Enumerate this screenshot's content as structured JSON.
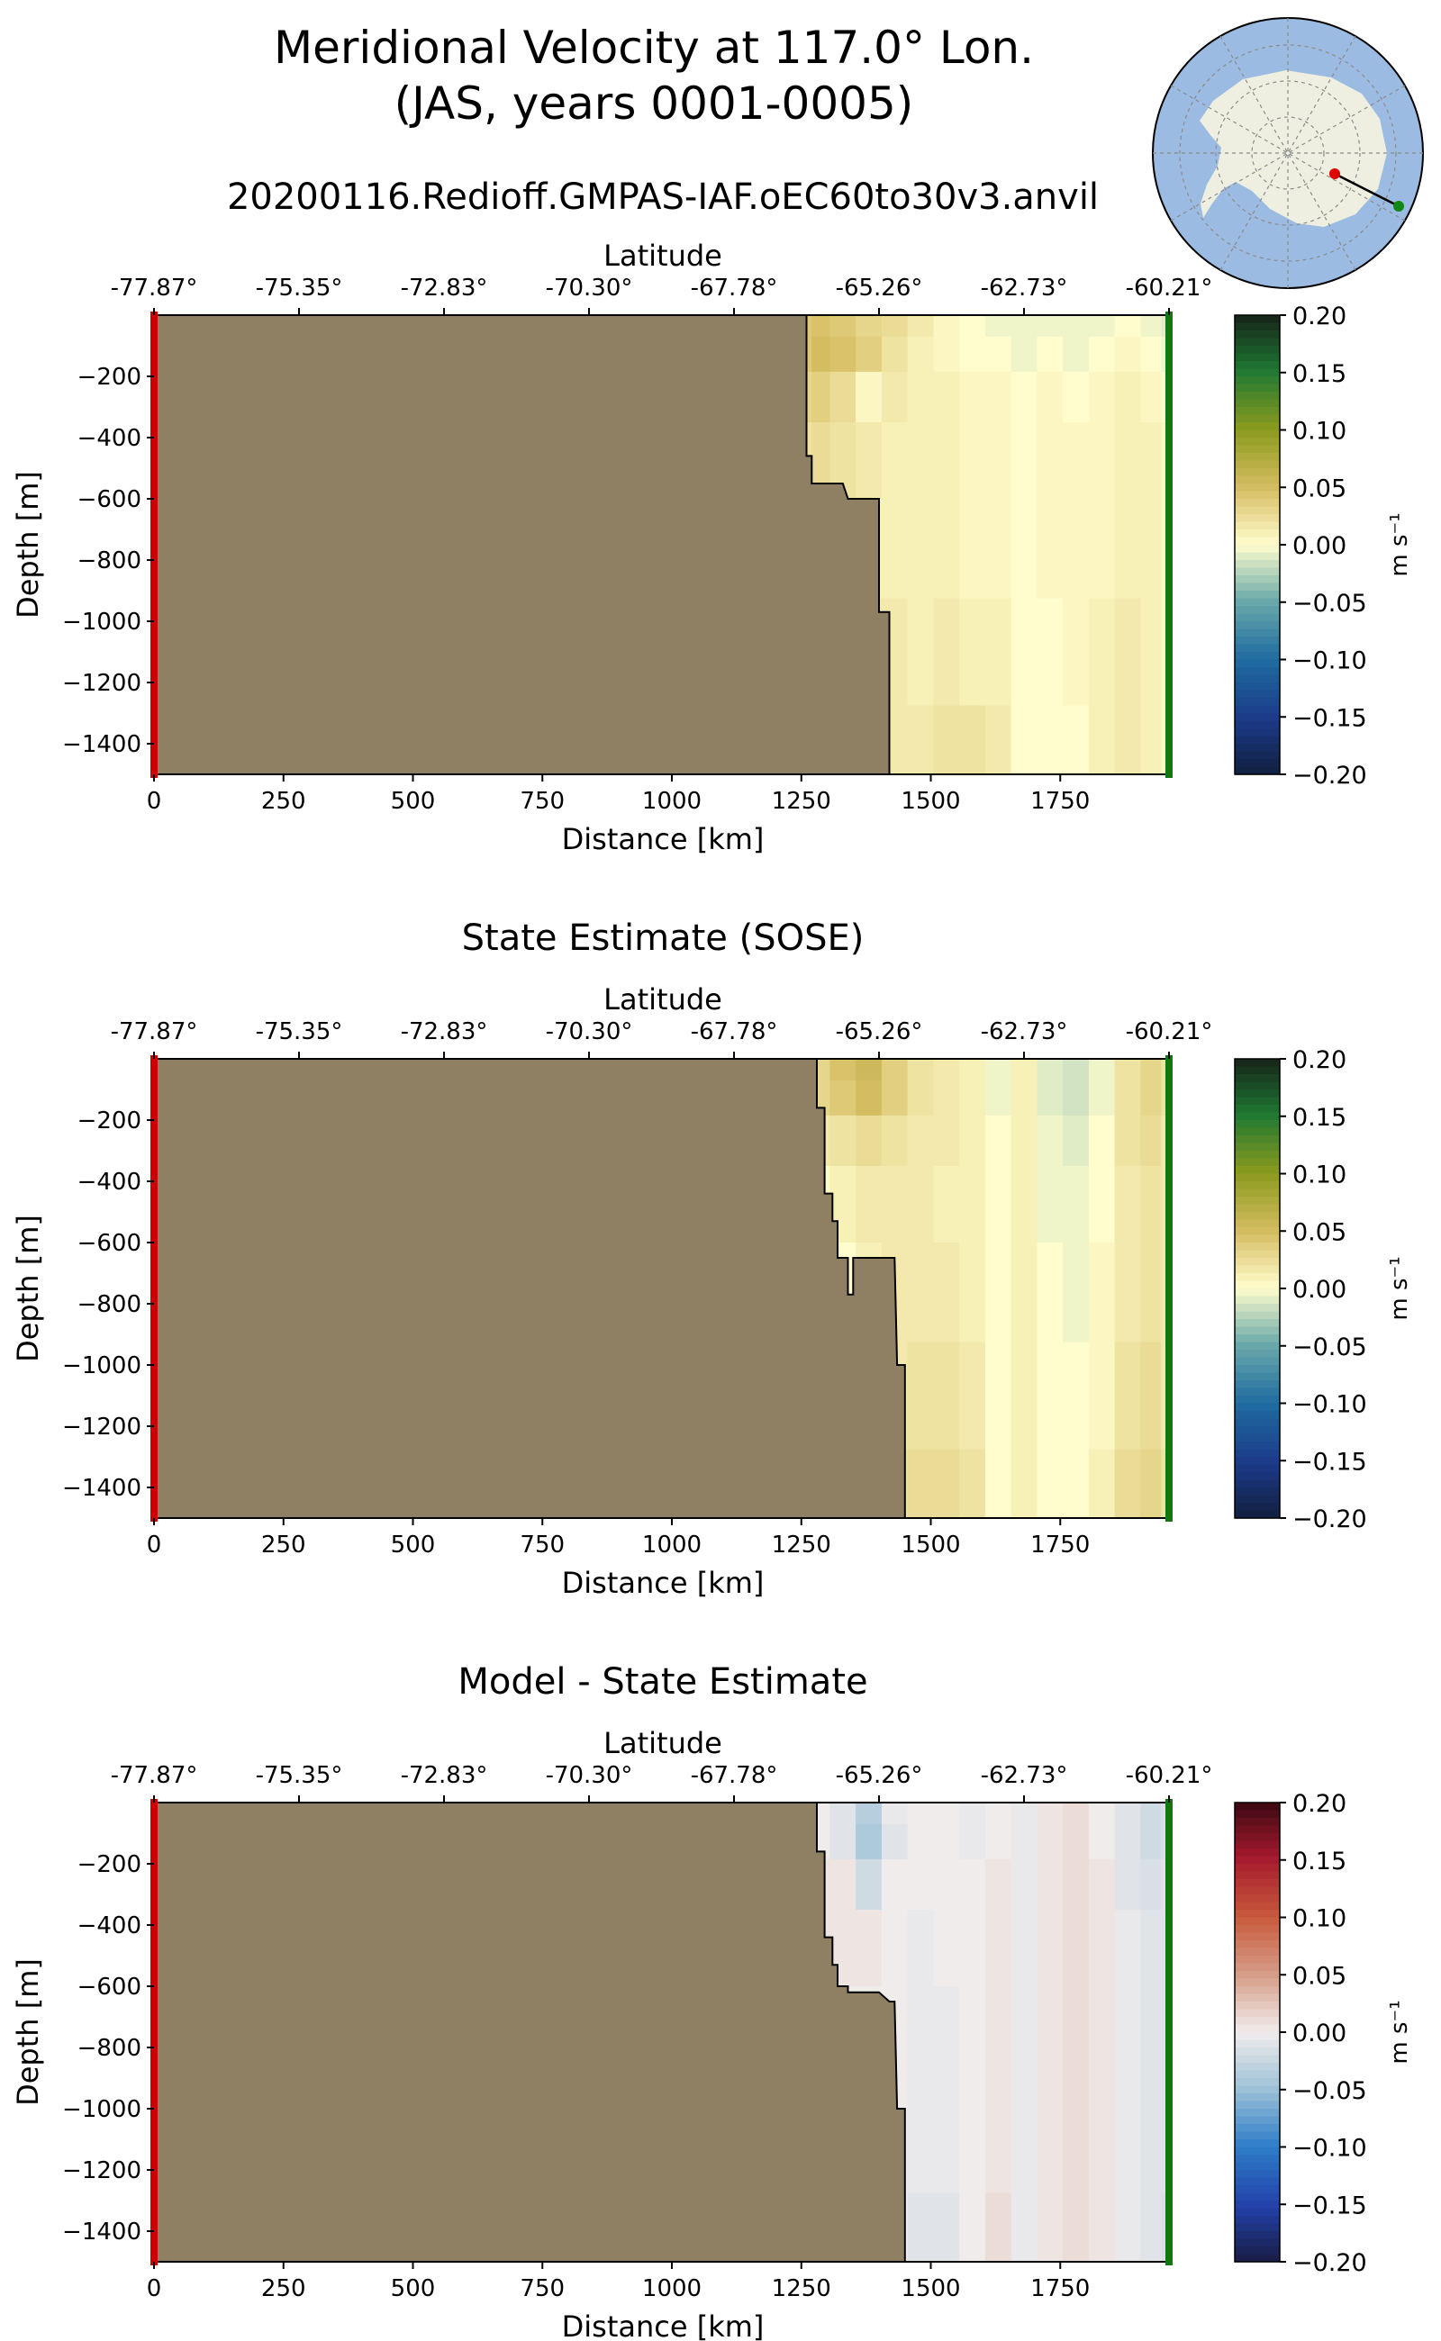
{
  "title_line1": "Meridional Velocity at 117.0° Lon.",
  "title_line2": "(JAS, years 0001-0005)",
  "colors": {
    "land": "#8f8064",
    "section_start": "#cc0000",
    "section_end": "#117711",
    "ocean_inset": "#9cbbe2",
    "antarctica_inset": "#eeefe0"
  },
  "chart_data": [
    {
      "type": "heatmap",
      "title": "20200116.Redioff.GMPAS-IAF.oEC60to30v3.anvil",
      "xlabel": "Distance [km]",
      "x2label": "Latitude",
      "ylabel": "Depth [m]",
      "xlim": [
        0,
        1960
      ],
      "ylim": [
        -1500,
        0
      ],
      "xticks": [
        0,
        250,
        500,
        750,
        1000,
        1250,
        1500,
        1750
      ],
      "yticks": [
        -200,
        -400,
        -600,
        -800,
        -1000,
        -1200,
        -1400
      ],
      "lat_ticks": [
        "-77.87°",
        "-75.35°",
        "-72.83°",
        "-70.30°",
        "-67.78°",
        "-65.26°",
        "-62.73°",
        "-60.21°"
      ],
      "lat_tick_positions_km": [
        0,
        280,
        560,
        840,
        1120,
        1400,
        1680,
        1960
      ],
      "colormap": "delta",
      "colorbar": {
        "label": "m s⁻¹",
        "ticks": [
          "0.20",
          "0.15",
          "0.10",
          "0.05",
          "0.00",
          "−0.05",
          "−0.10",
          "−0.15",
          "−0.20"
        ],
        "vmin": -0.2,
        "vmax": 0.2
      },
      "bathymetry": [
        [
          1260,
          0
        ],
        [
          1260,
          -460
        ],
        [
          1270,
          -460
        ],
        [
          1270,
          -550
        ],
        [
          1330,
          -550
        ],
        [
          1340,
          -600
        ],
        [
          1400,
          -600
        ],
        [
          1400,
          -970
        ],
        [
          1420,
          -970
        ],
        [
          1420,
          -1500
        ]
      ],
      "field_columns_km": [
        1260,
        1280,
        1330,
        1380,
        1430,
        1480,
        1530,
        1580,
        1630,
        1680,
        1730,
        1780,
        1830,
        1880,
        1930,
        1960
      ],
      "field_rows_m": [
        -20,
        -120,
        -250,
        -450,
        -750,
        -1100,
        -1450
      ],
      "field_values": [
        [
          0.04,
          0.045,
          0.04,
          0.03,
          0.025,
          0.015,
          0.005,
          0.0,
          -0.005,
          -0.005,
          -0.005,
          -0.005,
          -0.005,
          0.0,
          -0.005,
          -0.01
        ],
        [
          0.04,
          0.05,
          0.045,
          0.035,
          0.02,
          0.01,
          0.005,
          0.0,
          0.0,
          -0.005,
          0.0,
          -0.005,
          0.0,
          0.005,
          0.0,
          -0.005
        ],
        [
          0.03,
          0.035,
          0.025,
          0.005,
          0.015,
          0.01,
          0.01,
          0.005,
          0.005,
          0.0,
          0.005,
          0.0,
          0.005,
          0.01,
          0.005,
          0.0
        ],
        [
          0.02,
          0.025,
          0.02,
          0.015,
          0.01,
          0.01,
          0.01,
          0.005,
          0.005,
          0.0,
          0.005,
          0.005,
          0.005,
          0.01,
          0.01,
          0.005
        ],
        [
          0.015,
          0.015,
          0.015,
          0.01,
          0.01,
          0.01,
          0.01,
          0.005,
          0.005,
          0.0,
          0.005,
          0.005,
          0.005,
          0.01,
          0.01,
          0.005
        ],
        [
          0.015,
          0.015,
          0.015,
          0.015,
          0.015,
          0.01,
          0.015,
          0.01,
          0.01,
          0.0,
          0.0,
          0.005,
          0.01,
          0.015,
          0.01,
          0.005
        ],
        [
          0.015,
          0.015,
          0.015,
          0.015,
          0.015,
          0.015,
          0.02,
          0.02,
          0.015,
          0.0,
          0.0,
          0.0,
          0.01,
          0.015,
          0.01,
          0.005
        ]
      ]
    },
    {
      "type": "heatmap",
      "title": "State Estimate (SOSE)",
      "xlabel": "Distance [km]",
      "x2label": "Latitude",
      "ylabel": "Depth [m]",
      "xlim": [
        0,
        1960
      ],
      "ylim": [
        -1500,
        0
      ],
      "xticks": [
        0,
        250,
        500,
        750,
        1000,
        1250,
        1500,
        1750
      ],
      "yticks": [
        -200,
        -400,
        -600,
        -800,
        -1000,
        -1200,
        -1400
      ],
      "lat_ticks": [
        "-77.87°",
        "-75.35°",
        "-72.83°",
        "-70.30°",
        "-67.78°",
        "-65.26°",
        "-62.73°",
        "-60.21°"
      ],
      "lat_tick_positions_km": [
        0,
        280,
        560,
        840,
        1120,
        1400,
        1680,
        1960
      ],
      "colormap": "delta",
      "colorbar": {
        "label": "m s⁻¹",
        "ticks": [
          "0.20",
          "0.15",
          "0.10",
          "0.05",
          "0.00",
          "−0.05",
          "−0.10",
          "−0.15",
          "−0.20"
        ],
        "vmin": -0.2,
        "vmax": 0.2
      },
      "bathymetry": [
        [
          1280,
          0
        ],
        [
          1280,
          -160
        ],
        [
          1295,
          -160
        ],
        [
          1295,
          -440
        ],
        [
          1310,
          -440
        ],
        [
          1310,
          -530
        ],
        [
          1320,
          -530
        ],
        [
          1320,
          -650
        ],
        [
          1340,
          -650
        ],
        [
          1340,
          -770
        ],
        [
          1350,
          -770
        ],
        [
          1350,
          -650
        ],
        [
          1430,
          -650
        ],
        [
          1435,
          -1000
        ],
        [
          1450,
          -1000
        ],
        [
          1450,
          -1500
        ]
      ],
      "field_columns_km": [
        1280,
        1330,
        1380,
        1430,
        1480,
        1530,
        1580,
        1630,
        1680,
        1730,
        1780,
        1830,
        1880,
        1930,
        1960
      ],
      "field_rows_m": [
        -20,
        -120,
        -250,
        -450,
        -750,
        -1100,
        -1450
      ],
      "field_values": [
        [
          0.03,
          0.045,
          0.055,
          0.035,
          0.02,
          0.015,
          0.01,
          -0.005,
          0.01,
          -0.01,
          -0.015,
          -0.005,
          0.02,
          0.03,
          0.02
        ],
        [
          0.03,
          0.04,
          0.05,
          0.035,
          0.02,
          0.015,
          0.01,
          -0.005,
          0.01,
          -0.01,
          -0.015,
          -0.005,
          0.02,
          0.03,
          0.02
        ],
        [
          0.015,
          0.02,
          0.025,
          0.02,
          0.015,
          0.015,
          0.01,
          0.0,
          0.01,
          -0.005,
          -0.01,
          0.0,
          0.02,
          0.025,
          0.015
        ],
        [
          0.0,
          0.01,
          0.015,
          0.015,
          0.015,
          0.01,
          0.01,
          0.0,
          0.01,
          -0.005,
          -0.005,
          0.0,
          0.015,
          0.02,
          0.015
        ],
        [
          0.0,
          0.0,
          0.01,
          0.015,
          0.015,
          0.015,
          0.01,
          0.0,
          0.01,
          0.0,
          -0.005,
          0.005,
          0.015,
          0.02,
          0.015
        ],
        [
          0.0,
          0.0,
          0.0,
          0.015,
          0.02,
          0.02,
          0.015,
          0.0,
          0.01,
          0.0,
          0.0,
          0.005,
          0.02,
          0.025,
          0.015
        ],
        [
          0.0,
          0.0,
          0.0,
          0.02,
          0.025,
          0.025,
          0.02,
          0.0,
          0.01,
          0.0,
          0.0,
          0.01,
          0.025,
          0.03,
          0.02
        ]
      ]
    },
    {
      "type": "heatmap",
      "title": "Model - State Estimate",
      "xlabel": "Distance [km]",
      "x2label": "Latitude",
      "ylabel": "Depth [m]",
      "xlim": [
        0,
        1960
      ],
      "ylim": [
        -1500,
        0
      ],
      "xticks": [
        0,
        250,
        500,
        750,
        1000,
        1250,
        1500,
        1750
      ],
      "yticks": [
        -200,
        -400,
        -600,
        -800,
        -1000,
        -1200,
        -1400
      ],
      "lat_ticks": [
        "-77.87°",
        "-75.35°",
        "-72.83°",
        "-70.30°",
        "-67.78°",
        "-65.26°",
        "-62.73°",
        "-60.21°"
      ],
      "lat_tick_positions_km": [
        0,
        280,
        560,
        840,
        1120,
        1400,
        1680,
        1960
      ],
      "colormap": "balance",
      "colorbar": {
        "label": "m s⁻¹",
        "ticks": [
          "0.20",
          "0.15",
          "0.10",
          "0.05",
          "0.00",
          "−0.05",
          "−0.10",
          "−0.15",
          "−0.20"
        ],
        "vmin": -0.2,
        "vmax": 0.2
      },
      "bathymetry": [
        [
          1280,
          0
        ],
        [
          1280,
          -160
        ],
        [
          1295,
          -160
        ],
        [
          1295,
          -440
        ],
        [
          1310,
          -440
        ],
        [
          1310,
          -530
        ],
        [
          1320,
          -530
        ],
        [
          1320,
          -600
        ],
        [
          1340,
          -600
        ],
        [
          1340,
          -620
        ],
        [
          1400,
          -620
        ],
        [
          1420,
          -650
        ],
        [
          1430,
          -650
        ],
        [
          1435,
          -1000
        ],
        [
          1450,
          -1000
        ],
        [
          1450,
          -1500
        ]
      ],
      "field_columns_km": [
        1280,
        1330,
        1380,
        1430,
        1480,
        1530,
        1580,
        1630,
        1680,
        1730,
        1780,
        1830,
        1880,
        1930,
        1960
      ],
      "field_rows_m": [
        -20,
        -120,
        -250,
        -450,
        -750,
        -1100,
        -1450
      ],
      "field_values": [
        [
          0.0,
          -0.01,
          -0.035,
          -0.005,
          0.0,
          0.0,
          -0.005,
          0.0,
          -0.005,
          0.005,
          0.01,
          0.0,
          -0.01,
          -0.02,
          -0.015
        ],
        [
          0.0,
          -0.01,
          -0.04,
          -0.01,
          0.0,
          0.0,
          -0.005,
          0.0,
          -0.005,
          0.005,
          0.01,
          0.0,
          -0.01,
          -0.02,
          -0.015
        ],
        [
          0.005,
          0.005,
          -0.02,
          0.0,
          0.0,
          0.0,
          0.0,
          0.005,
          -0.005,
          0.005,
          0.01,
          0.005,
          -0.01,
          -0.015,
          -0.01
        ],
        [
          0.005,
          0.005,
          0.005,
          0.0,
          -0.005,
          0.0,
          0.0,
          0.005,
          -0.005,
          0.005,
          0.01,
          0.005,
          -0.005,
          -0.01,
          -0.01
        ],
        [
          0.0,
          0.0,
          0.0,
          0.0,
          -0.005,
          -0.005,
          0.0,
          0.005,
          -0.005,
          0.005,
          0.01,
          0.005,
          -0.005,
          -0.01,
          -0.01
        ],
        [
          0.0,
          0.0,
          0.0,
          0.0,
          -0.005,
          -0.005,
          0.0,
          0.005,
          -0.005,
          0.005,
          0.01,
          0.005,
          -0.005,
          -0.01,
          -0.01
        ],
        [
          0.0,
          0.0,
          0.0,
          0.0,
          -0.01,
          -0.01,
          0.0,
          0.01,
          -0.005,
          0.005,
          0.01,
          0.005,
          -0.005,
          -0.01,
          -0.015
        ]
      ]
    }
  ]
}
